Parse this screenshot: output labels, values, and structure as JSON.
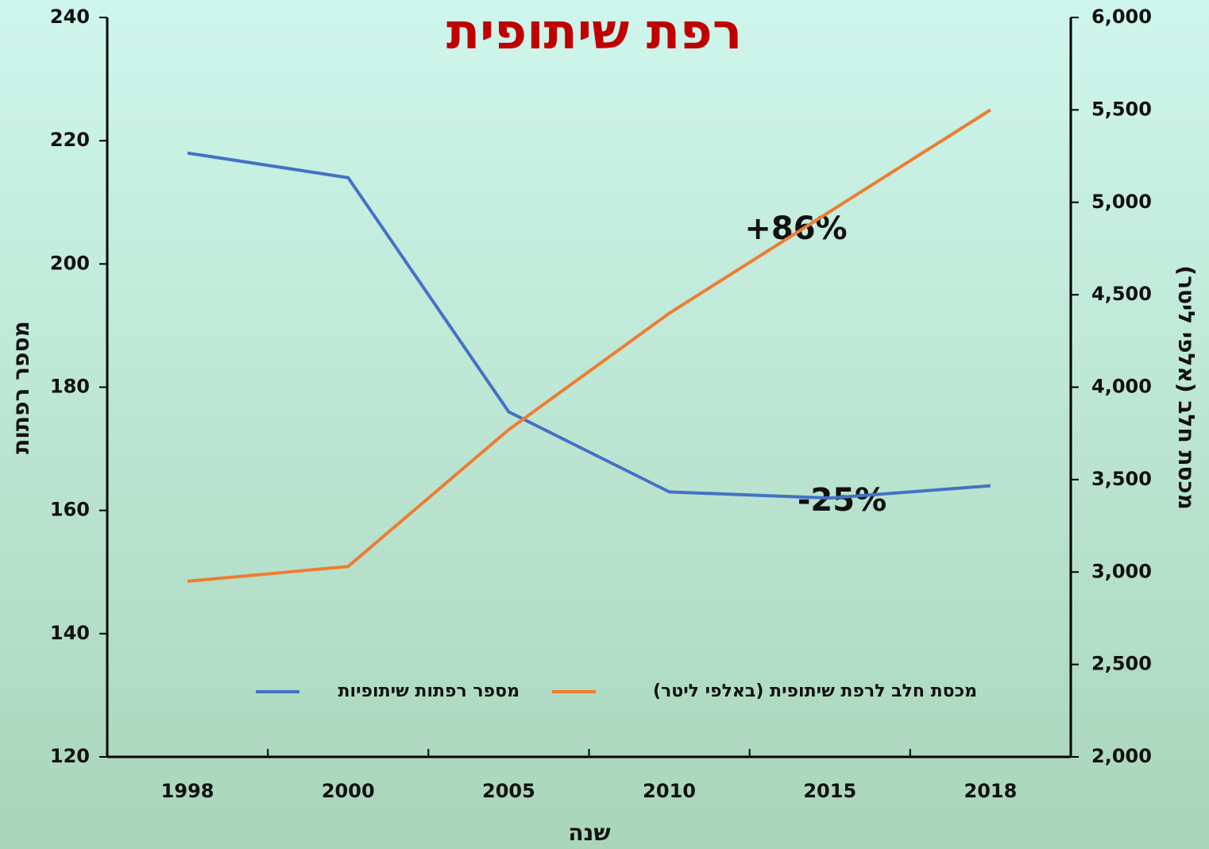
{
  "chart_data": {
    "type": "line",
    "title": "רפת שיתופית",
    "x_label": "שנה",
    "y_label": "מספר רפתות",
    "y2_label": "מכסת חלב (אלפי ליטר)",
    "categories": [
      "1998",
      "2000",
      "2005",
      "2010",
      "2015",
      "2018"
    ],
    "series": [
      {
        "name": "מספר רפתות שיתופיות",
        "color": "#4472c4",
        "values": [
          218,
          214,
          176,
          163,
          162,
          164
        ]
      },
      {
        "name": "מכסת חלב לרפת שיתופית (באלפי ליטר)",
        "color": "#ed7d31",
        "axis": "y2",
        "values": [
          2950,
          3030,
          3770,
          4400,
          4950,
          5500
        ]
      }
    ],
    "annotations": [
      "+86%",
      "-25%"
    ],
    "ylim": [
      120,
      240
    ],
    "yticks": [
      120,
      140,
      160,
      180,
      200,
      220,
      240
    ],
    "y2lim": [
      2000,
      6000
    ],
    "y2ticks": [
      {
        "value": 2000,
        "label": "2,000"
      },
      {
        "value": 2500,
        "label": "2,500"
      },
      {
        "value": 3000,
        "label": "3,000"
      },
      {
        "value": 3500,
        "label": "3,500"
      },
      {
        "value": 4000,
        "label": "4,000"
      },
      {
        "value": 4500,
        "label": "4,500"
      },
      {
        "value": 5000,
        "label": "5,000"
      },
      {
        "value": 5500,
        "label": "5,500"
      },
      {
        "value": 6000,
        "label": "6,000"
      }
    ],
    "legend": "bottom"
  }
}
